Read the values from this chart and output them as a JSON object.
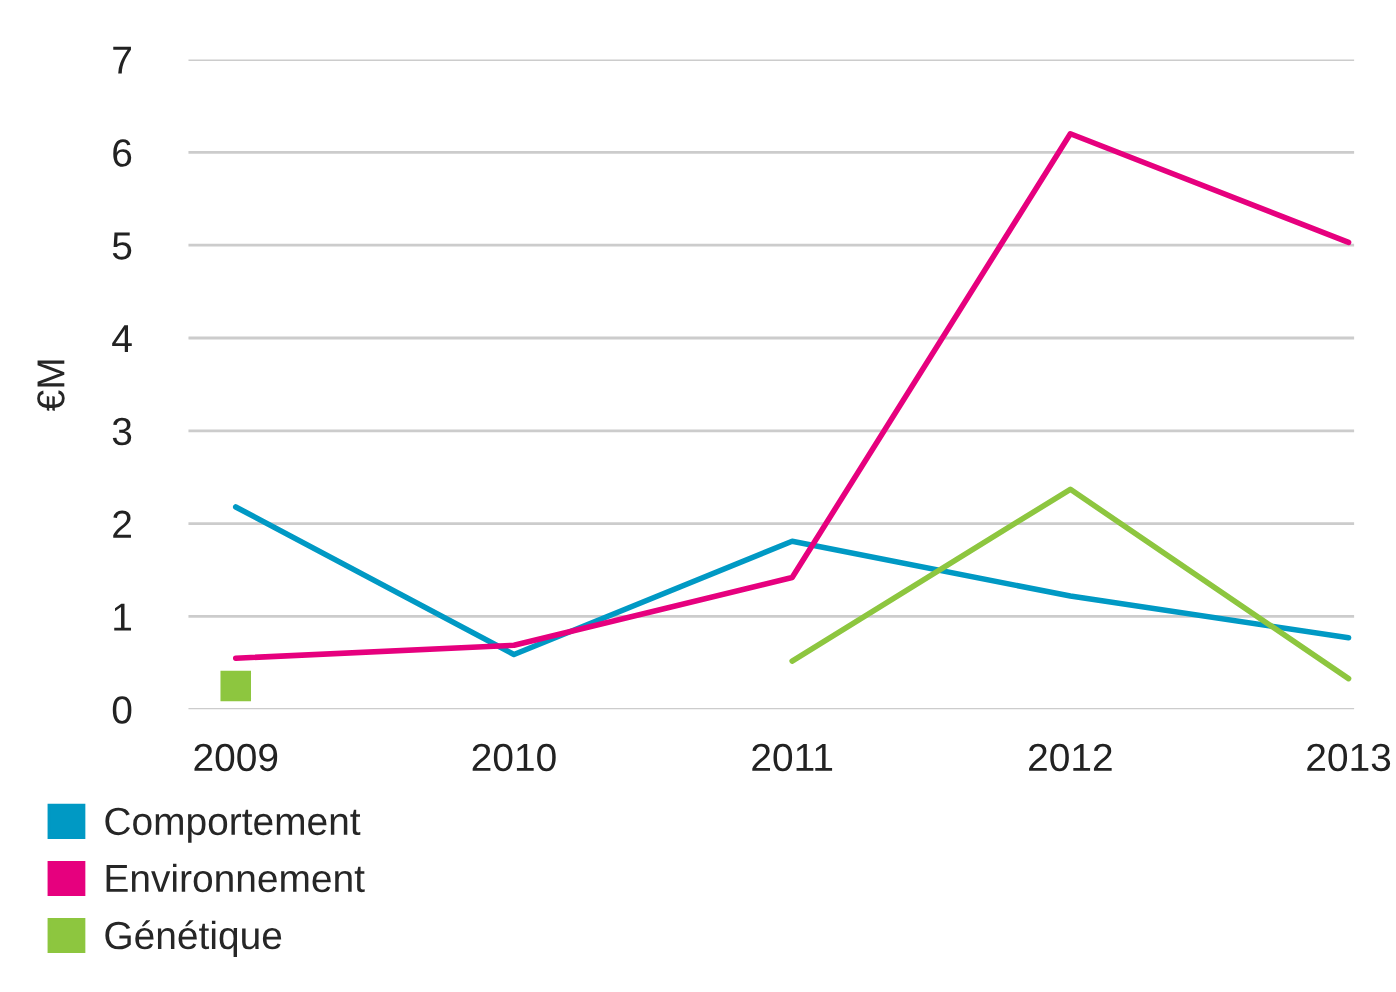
{
  "chart_data": {
    "type": "line",
    "ylabel": "€M",
    "categories": [
      "2009",
      "2010",
      "2011",
      "2012",
      "2013"
    ],
    "series": [
      {
        "name": "Comportement",
        "color": "#0099c4",
        "values": [
          2.18,
          0.59,
          1.81,
          1.22,
          0.77
        ]
      },
      {
        "name": "Environnement",
        "color": "#e6007e",
        "values": [
          0.55,
          0.69,
          1.42,
          6.2,
          5.03
        ]
      },
      {
        "name": "Génétique",
        "color": "#8dc63f",
        "values": [
          0.25,
          null,
          0.52,
          2.37,
          0.33
        ]
      }
    ],
    "ylim": [
      0,
      7
    ],
    "yticks": [
      0,
      1,
      2,
      3,
      4,
      5,
      6,
      7
    ],
    "grid": "y",
    "legend": "bottom"
  }
}
